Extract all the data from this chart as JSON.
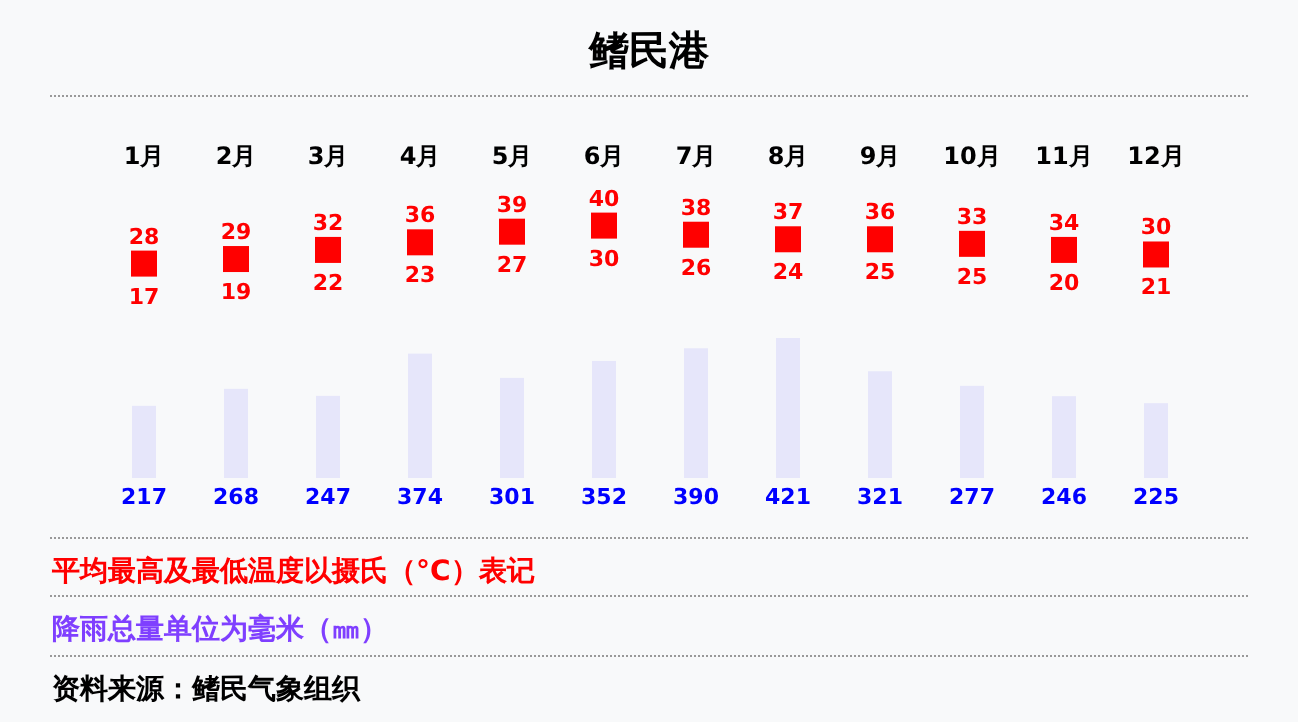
{
  "chart_data": [
    {
      "type": "other",
      "title": "鳍民港",
      "annotations": [
        "28",
        "29",
        "32",
        "36",
        "39",
        "40",
        "38",
        "37",
        "36",
        "33",
        "34",
        "30",
        "17",
        "19",
        "22",
        "23",
        "27",
        "30",
        "26",
        "24",
        "25",
        "25",
        "20",
        "21"
      ]
    },
    {
      "type": "bar",
      "categories": [
        "1月",
        "2月",
        "3月",
        "4月",
        "5月",
        "6月",
        "7月",
        "8月",
        "9月",
        "10月",
        "11月",
        "12月"
      ],
      "series": [
        {
          "color": "#e6e6fa",
          "values": [
            217,
            268,
            247,
            374,
            301,
            352,
            390,
            421,
            321,
            277,
            246,
            225
          ]
        }
      ],
      "data_labels": true,
      "annotations": [
        "平均最高及最低温度以摄氏（°C）表记",
        "降雨总量单位为毫米（㎜）",
        "资料来源：鳍民气象组织"
      ]
    }
  ]
}
